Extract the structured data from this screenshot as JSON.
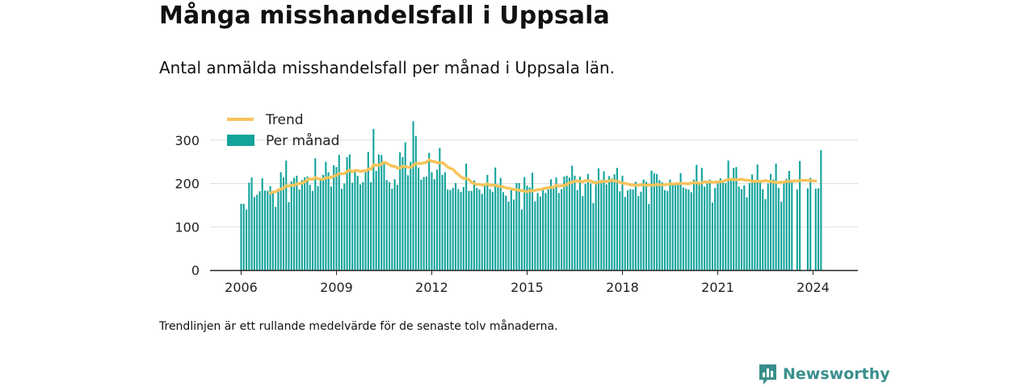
{
  "title": "Många misshandelsfall i Uppsala",
  "subtitle": "Antal anmälda misshandelsfall per månad i Uppsala län.",
  "footnote": "Trendlinjen är ett rullande medelvärde för de senaste tolv månaderna.",
  "brand": {
    "name": "Newsworthy",
    "icon": "newsworthy-logo-icon",
    "color": "#3a8f8c"
  },
  "colors": {
    "bars": "#12a39b",
    "trend": "#f8c35a",
    "axis": "#222222",
    "grid": "#dddddd"
  },
  "chart_data": {
    "type": "bar",
    "x_start": "2006-01",
    "x_ticks": [
      "2006",
      "2009",
      "2012",
      "2015",
      "2018",
      "2021",
      "2024"
    ],
    "y_ticks": [
      "0",
      "100",
      "200",
      "300"
    ],
    "ylim": [
      0,
      350
    ],
    "grid": true,
    "legend_position": "top-left",
    "legend": [
      {
        "name": "Trend",
        "kind": "line"
      },
      {
        "name": "Per månad",
        "kind": "bar"
      }
    ],
    "series": [
      {
        "name": "Per månad",
        "values": [
          153,
          153,
          140,
          202,
          214,
          169,
          174,
          182,
          212,
          184,
          183,
          194,
          177,
          146,
          182,
          226,
          214,
          253,
          157,
          205,
          213,
          218,
          186,
          208,
          214,
          216,
          197,
          183,
          258,
          194,
          207,
          220,
          250,
          226,
          193,
          242,
          238,
          266,
          188,
          200,
          261,
          267,
          202,
          228,
          218,
          198,
          203,
          231,
          273,
          203,
          326,
          229,
          267,
          266,
          252,
          208,
          203,
          188,
          210,
          197,
          272,
          261,
          295,
          219,
          250,
          344,
          310,
          237,
          209,
          215,
          216,
          271,
          226,
          210,
          232,
          282,
          220,
          226,
          186,
          185,
          190,
          201,
          187,
          181,
          192,
          246,
          183,
          183,
          207,
          190,
          186,
          176,
          198,
          220,
          187,
          181,
          237,
          198,
          213,
          180,
          172,
          158,
          185,
          163,
          201,
          201,
          140,
          215,
          195,
          191,
          225,
          159,
          178,
          170,
          191,
          178,
          186,
          210,
          194,
          214,
          178,
          187,
          216,
          218,
          214,
          241,
          218,
          185,
          216,
          171,
          199,
          222,
          200,
          155,
          206,
          235,
          208,
          228,
          198,
          217,
          212,
          221,
          236,
          182,
          218,
          169,
          184,
          187,
          186,
          204,
          171,
          181,
          209,
          204,
          153,
          230,
          224,
          222,
          208,
          203,
          185,
          183,
          209,
          200,
          196,
          200,
          224,
          191,
          188,
          186,
          180,
          209,
          243,
          201,
          236,
          193,
          202,
          209,
          156,
          190,
          200,
          212,
          206,
          201,
          253,
          210,
          236,
          238,
          193,
          187,
          196,
          168,
          201,
          221,
          202,
          244,
          204,
          187,
          164,
          200,
          222,
          209,
          246,
          190,
          158,
          205,
          211,
          229,
          208,
          0,
          186,
          252,
          0,
          0,
          189,
          213,
          0,
          188,
          189,
          277
        ]
      },
      {
        "name": "Trend",
        "values": [
          null,
          null,
          null,
          null,
          null,
          null,
          null,
          null,
          null,
          null,
          null,
          178,
          180,
          181,
          185,
          187,
          189,
          195,
          194,
          196,
          196,
          199,
          200,
          201,
          204,
          209,
          210,
          210,
          214,
          211,
          210,
          210,
          213,
          214,
          214,
          217,
          219,
          223,
          222,
          223,
          228,
          231,
          227,
          230,
          230,
          228,
          229,
          229,
          233,
          233,
          243,
          242,
          242,
          245,
          249,
          247,
          243,
          240,
          240,
          236,
          236,
          240,
          239,
          238,
          237,
          242,
          246,
          246,
          246,
          248,
          249,
          255,
          251,
          251,
          248,
          248,
          248,
          244,
          238,
          235,
          233,
          226,
          221,
          215,
          212,
          212,
          209,
          203,
          200,
          198,
          198,
          196,
          197,
          199,
          196,
          196,
          196,
          194,
          193,
          192,
          190,
          189,
          188,
          186,
          186,
          184,
          184,
          182,
          181,
          183,
          183,
          184,
          186,
          186,
          188,
          189,
          190,
          191,
          191,
          196,
          194,
          195,
          195,
          198,
          201,
          203,
          205,
          206,
          205,
          204,
          207,
          206,
          206,
          203,
          201,
          204,
          204,
          205,
          205,
          206,
          208,
          206,
          205,
          203,
          201,
          200,
          199,
          197,
          197,
          196,
          196,
          197,
          197,
          196,
          196,
          196,
          197,
          198,
          197,
          197,
          197,
          198,
          199,
          199,
          199,
          200,
          200,
          200,
          200,
          199,
          201,
          202,
          202,
          200,
          202,
          204,
          203,
          204,
          203,
          203,
          204,
          204,
          205,
          207,
          209,
          210,
          209,
          209,
          209,
          210,
          208,
          208,
          207,
          205,
          205,
          205,
          205,
          205,
          207,
          205,
          205,
          203,
          203,
          202,
          203,
          203,
          205,
          205,
          205,
          206,
          206,
          207,
          207,
          207,
          207,
          207,
          206,
          206
        ]
      }
    ]
  }
}
